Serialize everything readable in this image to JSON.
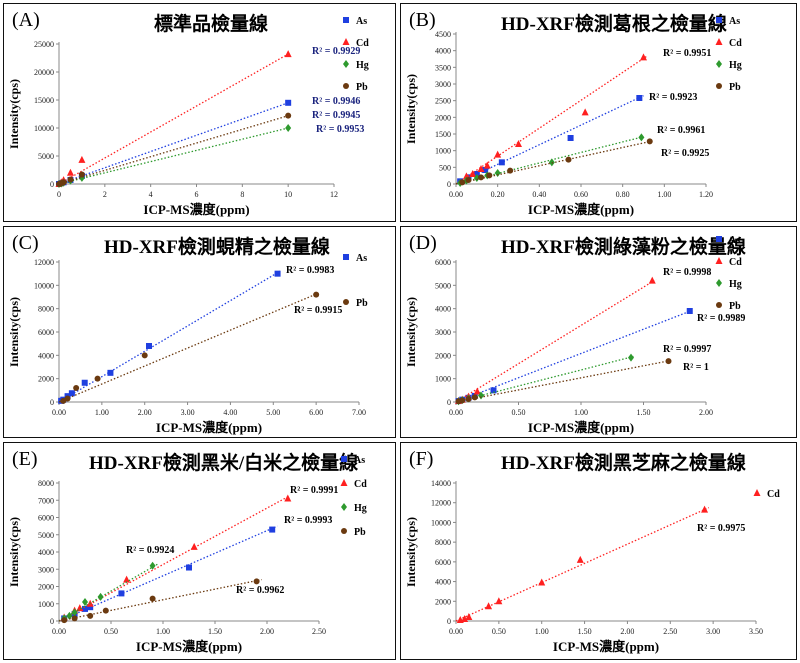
{
  "chart_data": [
    {
      "label": "(A)",
      "title": "標準品檢量線",
      "type": "scatter",
      "xlabel": "ICP-MS濃度(ppm)",
      "ylabel": "Intensity(cps)",
      "xlim": [
        0,
        12
      ],
      "ylim": [
        0,
        25000
      ],
      "xticks": [
        "0",
        "2",
        "4",
        "6",
        "8",
        "10",
        "12"
      ],
      "yticks": [
        "0",
        "5000",
        "10000",
        "15000",
        "20000",
        "25000"
      ],
      "legend": [
        "As",
        "Cd",
        "Hg",
        "Pb"
      ],
      "series": [
        {
          "name": "As",
          "color": "#1f3fe0",
          "marker": "square",
          "x": [
            0,
            0.1,
            0.2,
            0.5,
            1,
            10
          ],
          "y": [
            0,
            150,
            300,
            720,
            1450,
            14500
          ],
          "fit": [
            [
              0,
              0
            ],
            [
              10,
              14500
            ]
          ],
          "r2": "R² = 0.9946"
        },
        {
          "name": "Cd",
          "color": "#ff2020",
          "marker": "triangle",
          "x": [
            0,
            0.1,
            0.2,
            0.5,
            1,
            10
          ],
          "y": [
            0,
            300,
            700,
            2000,
            4300,
            23200
          ],
          "fit": [
            [
              0,
              0
            ],
            [
              10,
              23200
            ]
          ],
          "r2": "R² = 0.9929"
        },
        {
          "name": "Hg",
          "color": "#2e9a2e",
          "marker": "diamond",
          "x": [
            0,
            0.1,
            0.2,
            0.5,
            1,
            10
          ],
          "y": [
            0,
            100,
            250,
            600,
            1100,
            10000
          ],
          "fit": [
            [
              0,
              0
            ],
            [
              10,
              10000
            ]
          ],
          "r2": "R² = 0.9953"
        },
        {
          "name": "Pb",
          "color": "#6b3a10",
          "marker": "circle",
          "x": [
            0,
            0.1,
            0.2,
            0.5,
            1,
            10
          ],
          "y": [
            0,
            150,
            300,
            800,
            1700,
            12200
          ],
          "fit": [
            [
              0,
              0
            ],
            [
              10,
              12200
            ]
          ],
          "r2": "R² = 0.9945"
        }
      ]
    },
    {
      "label": "(B)",
      "title": "HD-XRF檢測葛根之檢量線",
      "type": "scatter",
      "xlabel": "ICP-MS濃度(ppm)",
      "ylabel": "Intensity(cps)",
      "xlim": [
        0,
        1.2
      ],
      "ylim": [
        0,
        4500
      ],
      "xticks": [
        "0.00",
        "0.20",
        "0.40",
        "0.60",
        "0.80",
        "1.00",
        "1.20"
      ],
      "yticks": [
        "0",
        "500",
        "1000",
        "1500",
        "2000",
        "2500",
        "3000",
        "3500",
        "4000",
        "4500"
      ],
      "legend": [
        "As",
        "Cd",
        "Hg",
        "Pb"
      ],
      "series": [
        {
          "name": "As",
          "color": "#1f3fe0",
          "marker": "square",
          "x": [
            0.02,
            0.06,
            0.1,
            0.14,
            0.22,
            0.55,
            0.88
          ],
          "y": [
            80,
            200,
            300,
            420,
            650,
            1380,
            2580
          ],
          "fit": [
            [
              0,
              0
            ],
            [
              0.9,
              2650
            ]
          ],
          "r2": "R² = 0.9923"
        },
        {
          "name": "Cd",
          "color": "#ff2020",
          "marker": "triangle",
          "x": [
            0.05,
            0.08,
            0.12,
            0.15,
            0.2,
            0.3,
            0.62,
            0.9
          ],
          "y": [
            230,
            300,
            450,
            550,
            880,
            1200,
            2150,
            3800
          ],
          "fit": [
            [
              0,
              0
            ],
            [
              0.92,
              3850
            ]
          ],
          "r2": "R² = 0.9951"
        },
        {
          "name": "Hg",
          "color": "#2e9a2e",
          "marker": "diamond",
          "x": [
            0.02,
            0.05,
            0.1,
            0.15,
            0.2,
            0.46,
            0.89
          ],
          "y": [
            30,
            100,
            180,
            260,
            330,
            650,
            1400
          ],
          "fit": [
            [
              0,
              0
            ],
            [
              0.9,
              1420
            ]
          ],
          "r2": "R² = 0.9961"
        },
        {
          "name": "Pb",
          "color": "#6b3a10",
          "marker": "circle",
          "x": [
            0.03,
            0.06,
            0.12,
            0.16,
            0.26,
            0.54,
            0.93
          ],
          "y": [
            50,
            120,
            200,
            260,
            400,
            730,
            1280
          ],
          "fit": [
            [
              0,
              0
            ],
            [
              0.95,
              1300
            ]
          ],
          "r2": "R² = 0.9925"
        }
      ]
    },
    {
      "label": "(C)",
      "title": "HD-XRF檢測蜆精之檢量線",
      "type": "scatter",
      "xlabel": "ICP-MS濃度(ppm)",
      "ylabel": "Intensity(cps)",
      "xlim": [
        0,
        7
      ],
      "ylim": [
        0,
        12000
      ],
      "xticks": [
        "0.00",
        "1.00",
        "2.00",
        "3.00",
        "4.00",
        "5.00",
        "6.00",
        "7.00"
      ],
      "yticks": [
        "0",
        "2000",
        "4000",
        "6000",
        "8000",
        "10000",
        "12000"
      ],
      "legend": [
        "As",
        "Pb"
      ],
      "series": [
        {
          "name": "As",
          "color": "#1f3fe0",
          "marker": "square",
          "x": [
            0.05,
            0.1,
            0.2,
            0.3,
            0.6,
            1.2,
            2.1,
            5.1
          ],
          "y": [
            100,
            200,
            500,
            750,
            1650,
            2500,
            4800,
            11000
          ],
          "fit": [
            [
              0,
              0
            ],
            [
              5.2,
              11300
            ]
          ],
          "r2": "R² = 0.9983"
        },
        {
          "name": "Pb",
          "color": "#6b3a10",
          "marker": "circle",
          "x": [
            0.1,
            0.2,
            0.4,
            0.9,
            2.0,
            6.0
          ],
          "y": [
            100,
            300,
            1200,
            2000,
            4000,
            9200
          ],
          "fit": [
            [
              0,
              0
            ],
            [
              6.1,
              9400
            ]
          ],
          "r2": "R² = 0.9915"
        }
      ]
    },
    {
      "label": "(D)",
      "title": "HD-XRF檢測綠藻粉之檢量線",
      "type": "scatter",
      "xlabel": "ICP-MS濃度(ppm)",
      "ylabel": "Intensity(cps)",
      "xlim": [
        0,
        2
      ],
      "ylim": [
        0,
        6000
      ],
      "xticks": [
        "0.00",
        "0.50",
        "1.00",
        "1.50",
        "2.00"
      ],
      "yticks": [
        "0",
        "1000",
        "2000",
        "3000",
        "4000",
        "5000",
        "6000"
      ],
      "legend": [
        "As",
        "Cd",
        "Hg",
        "Pb"
      ],
      "series": [
        {
          "name": "As",
          "color": "#1f3fe0",
          "marker": "square",
          "x": [
            0.02,
            0.05,
            0.1,
            0.15,
            0.3,
            1.87
          ],
          "y": [
            40,
            100,
            180,
            260,
            500,
            3900
          ],
          "fit": [
            [
              0,
              0
            ],
            [
              1.9,
              3950
            ]
          ],
          "r2": "R² = 0.9989"
        },
        {
          "name": "Cd",
          "color": "#ff2020",
          "marker": "triangle",
          "x": [
            0.02,
            0.05,
            0.1,
            0.17,
            1.57
          ],
          "y": [
            50,
            100,
            230,
            450,
            5200
          ],
          "fit": [
            [
              0,
              0
            ],
            [
              1.6,
              5250
            ]
          ],
          "r2": "R² = 0.9998"
        },
        {
          "name": "Hg",
          "color": "#2e9a2e",
          "marker": "diamond",
          "x": [
            0.02,
            0.05,
            0.1,
            0.2,
            1.4
          ],
          "y": [
            30,
            80,
            150,
            280,
            1900
          ],
          "fit": [
            [
              0,
              0
            ],
            [
              1.42,
              1950
            ]
          ],
          "r2": "R² = 0.9997"
        },
        {
          "name": "Pb",
          "color": "#6b3a10",
          "marker": "circle",
          "x": [
            0.02,
            0.05,
            0.1,
            0.15,
            1.7
          ],
          "y": [
            30,
            70,
            130,
            200,
            1750
          ],
          "fit": [
            [
              0,
              0
            ],
            [
              1.72,
              1780
            ]
          ],
          "r2": "R² = 1"
        }
      ]
    },
    {
      "label": "(E)",
      "title": "HD-XRF檢測黑米/白米之檢量線",
      "type": "scatter",
      "xlabel": "ICP-MS濃度(ppm)",
      "ylabel": "Intensity(cps)",
      "xlim": [
        0,
        2.5
      ],
      "ylim": [
        0,
        8000
      ],
      "xticks": [
        "0.00",
        "0.50",
        "1.00",
        "1.50",
        "2.00",
        "2.50"
      ],
      "yticks": [
        "0",
        "1000",
        "2000",
        "3000",
        "4000",
        "5000",
        "6000",
        "7000",
        "8000"
      ],
      "legend": [
        "As",
        "Cd",
        "Hg",
        "Pb"
      ],
      "series": [
        {
          "name": "As",
          "color": "#1f3fe0",
          "marker": "square",
          "x": [
            0.05,
            0.15,
            0.25,
            0.3,
            0.6,
            1.25,
            2.05
          ],
          "y": [
            150,
            400,
            700,
            800,
            1600,
            3100,
            5300
          ],
          "fit": [
            [
              0,
              0
            ],
            [
              2.1,
              5500
            ]
          ],
          "r2": "R² = 0.9993"
        },
        {
          "name": "Cd",
          "color": "#ff2020",
          "marker": "triangle",
          "x": [
            0.05,
            0.15,
            0.2,
            0.3,
            0.65,
            1.3,
            2.2
          ],
          "y": [
            200,
            600,
            750,
            1000,
            2400,
            4300,
            7100
          ],
          "fit": [
            [
              0,
              0
            ],
            [
              2.2,
              7200
            ]
          ],
          "r2": "R² = 0.9991"
        },
        {
          "name": "Hg",
          "color": "#2e9a2e",
          "marker": "diamond",
          "x": [
            0.05,
            0.1,
            0.15,
            0.25,
            0.4,
            0.9
          ],
          "y": [
            150,
            300,
            500,
            1100,
            1400,
            3200
          ],
          "fit": [
            [
              0,
              0
            ],
            [
              0.95,
              3300
            ]
          ],
          "r2": "R² = 0.9924"
        },
        {
          "name": "Pb",
          "color": "#6b3a10",
          "marker": "circle",
          "x": [
            0.05,
            0.15,
            0.3,
            0.45,
            0.9,
            1.9
          ],
          "y": [
            50,
            150,
            300,
            600,
            1300,
            2300
          ],
          "fit": [
            [
              0,
              0
            ],
            [
              1.95,
              2400
            ]
          ],
          "r2": "R² = 0.9962"
        }
      ]
    },
    {
      "label": "(F)",
      "title": "HD-XRF檢測黑芝麻之檢量線",
      "type": "scatter",
      "xlabel": "ICP-MS濃度(ppm)",
      "ylabel": "Intensity(cps)",
      "xlim": [
        0,
        3.5
      ],
      "ylim": [
        0,
        14000
      ],
      "xticks": [
        "0.00",
        "0.50",
        "1.00",
        "1.50",
        "2.00",
        "2.50",
        "3.00",
        "3.50"
      ],
      "yticks": [
        "0",
        "2000",
        "4000",
        "6000",
        "8000",
        "10000",
        "12000",
        "14000"
      ],
      "legend": [
        "Cd"
      ],
      "series": [
        {
          "name": "Cd",
          "color": "#ff2020",
          "marker": "triangle",
          "x": [
            0.05,
            0.1,
            0.15,
            0.38,
            0.5,
            1.0,
            1.45,
            2.9
          ],
          "y": [
            100,
            200,
            400,
            1500,
            2000,
            3900,
            6200,
            11300
          ],
          "fit": [
            [
              0,
              0
            ],
            [
              2.95,
              11500
            ]
          ],
          "r2": "R² = 0.9975"
        }
      ]
    }
  ]
}
